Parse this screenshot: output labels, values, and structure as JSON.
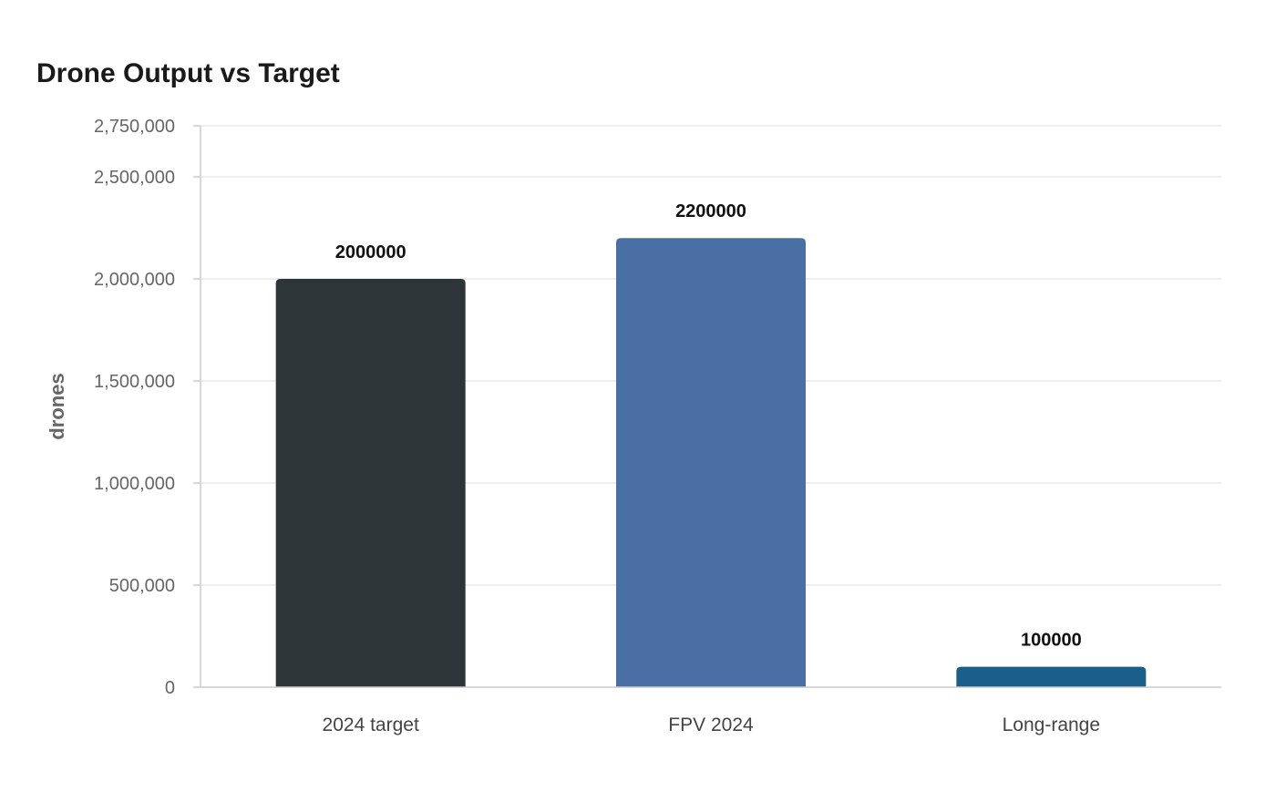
{
  "chart_data": {
    "type": "bar",
    "title": "Drone Output vs Target",
    "xlabel": "",
    "ylabel": "drones",
    "categories": [
      "2024 target",
      "FPV 2024",
      "Long-range"
    ],
    "values": [
      2000000,
      2200000,
      100000
    ],
    "value_labels": [
      "2000000",
      "2200000",
      "100000"
    ],
    "ylim": [
      0,
      2750000
    ],
    "yticks": [
      0,
      500000,
      1000000,
      1500000,
      2000000,
      2500000,
      2750000
    ],
    "ytick_labels": [
      "0",
      "500,000",
      "1,000,000",
      "1,500,000",
      "2,000,000",
      "2,500,000",
      "2,750,000"
    ],
    "colors": [
      "#2e3538",
      "#4a6fa5",
      "#1a5f8a"
    ],
    "grid": true,
    "legend": "none"
  }
}
